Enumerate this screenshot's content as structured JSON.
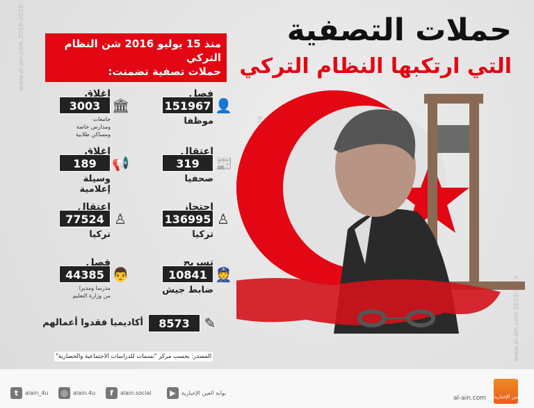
{
  "header": {
    "title": "حملات التصفية",
    "subtitle": "التي ارتكبها النظام التركي"
  },
  "intro": {
    "line1": "منذ 15 يوليو 2016 شن النظام التركي",
    "line2": "حملات تصفية تضمنت:"
  },
  "stats": [
    {
      "label": "فصل",
      "value": "151967",
      "sub": "موظفا",
      "icon": "employee-icon"
    },
    {
      "label": "إغلاق",
      "value": "3003",
      "sub": "جامعات\nومدارس خاصة\nومساكن طلابية",
      "icon": "building-icon"
    },
    {
      "label": "اعتقال",
      "value": "319",
      "sub": "صحفيا",
      "icon": "newspaper-icon"
    },
    {
      "label": "إغلاق",
      "value": "189",
      "sub": "وسيلة إعلامية",
      "icon": "megaphone-icon"
    },
    {
      "label": "احتجاز",
      "value": "136995",
      "sub": "تركيا",
      "icon": "person-icon"
    },
    {
      "label": "اعتقال",
      "value": "77524",
      "sub": "تركيا",
      "icon": "person-icon"
    },
    {
      "label": "تسريح",
      "value": "10841",
      "sub": "ضابط جيش",
      "icon": "soldier-icon"
    },
    {
      "label": "فصل",
      "value": "44385",
      "sub": "مدرسا ومديرا\nمن وزارة التعليم",
      "icon": "teacher-icon"
    }
  ],
  "academics": {
    "value": "8573",
    "text": "أكاديميا فقدوا أعمالهم",
    "icon": "document-pen-icon"
  },
  "source": "المصدر: بحسب مركز \"نسمات للدراسات الاجتماعية والحضارية\"",
  "watermark": "www.al-ain.com 2018-2019",
  "footer": {
    "twitter": "alain_4u",
    "instagram": "alain.4u",
    "facebook": "alain.social",
    "youtube": "بوابة العين الإخبارية",
    "site": "al-ain.com",
    "logo": "العين الإخبارية"
  },
  "colors": {
    "accent": "#e30613",
    "box": "#222222"
  }
}
